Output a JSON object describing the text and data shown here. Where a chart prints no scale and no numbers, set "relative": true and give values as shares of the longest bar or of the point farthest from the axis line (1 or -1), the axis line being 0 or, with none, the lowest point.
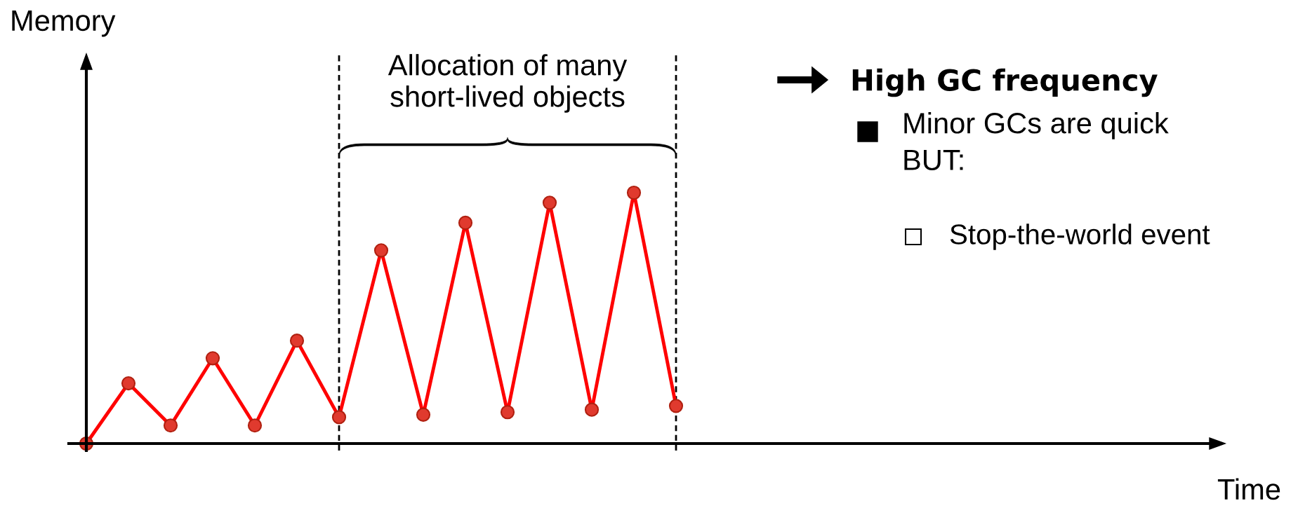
{
  "chart_data": {
    "type": "line",
    "relative": true,
    "categories": [
      null,
      null,
      null,
      null,
      null,
      null,
      null,
      null,
      null,
      null,
      null,
      null,
      null,
      null,
      null
    ],
    "series": [
      {
        "color": "#ff0000",
        "values": [
          0,
          0.24,
          0.072,
          0.34,
          0.072,
          0.41,
          0.105,
          0.77,
          0.115,
          0.88,
          0.125,
          0.96,
          0.135,
          1.0,
          0.15
        ]
      }
    ],
    "marker": "circle",
    "line_style": "solid",
    "annotations": [
      "Memory",
      "Time",
      "Allocation of many\nshort-lived objects",
      "High GC frequency",
      "Minor GCs are quick\nBUT:",
      "Stop-the-world event"
    ]
  }
}
